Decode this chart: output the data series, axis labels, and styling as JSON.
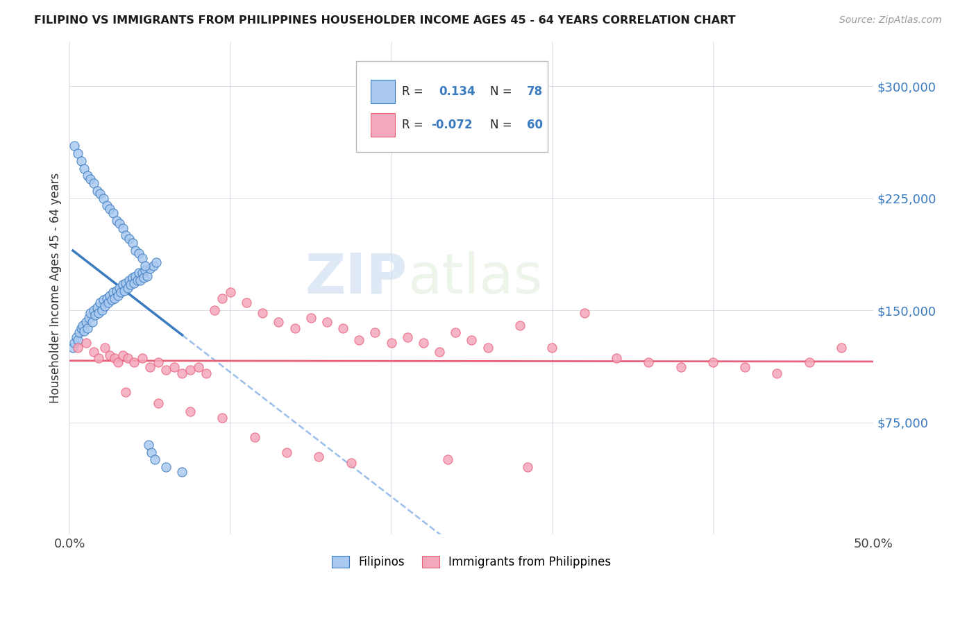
{
  "title": "FILIPINO VS IMMIGRANTS FROM PHILIPPINES HOUSEHOLDER INCOME AGES 45 - 64 YEARS CORRELATION CHART",
  "source": "Source: ZipAtlas.com",
  "ylabel": "Householder Income Ages 45 - 64 years",
  "xlim": [
    0.0,
    0.5
  ],
  "ylim": [
    0,
    330000
  ],
  "yticks": [
    75000,
    150000,
    225000,
    300000
  ],
  "ytick_labels": [
    "$75,000",
    "$150,000",
    "$225,000",
    "$300,000"
  ],
  "blue_R": 0.134,
  "blue_N": 78,
  "pink_R": -0.072,
  "pink_N": 60,
  "blue_color": "#aac9f0",
  "pink_color": "#f5a8bc",
  "blue_line_color": "#3a7abf",
  "pink_line_color": "#e8607a",
  "dashed_line_color": "#90b8e8",
  "watermark_zip": "ZIP",
  "watermark_atlas": "atlas",
  "legend_labels": [
    "Filipinos",
    "Immigrants from Philippines"
  ],
  "blue_x": [
    0.002,
    0.003,
    0.004,
    0.005,
    0.006,
    0.007,
    0.008,
    0.009,
    0.01,
    0.011,
    0.012,
    0.013,
    0.014,
    0.015,
    0.016,
    0.017,
    0.018,
    0.019,
    0.02,
    0.021,
    0.022,
    0.023,
    0.024,
    0.025,
    0.026,
    0.027,
    0.028,
    0.029,
    0.03,
    0.031,
    0.032,
    0.033,
    0.034,
    0.035,
    0.036,
    0.037,
    0.038,
    0.039,
    0.04,
    0.041,
    0.042,
    0.043,
    0.044,
    0.045,
    0.046,
    0.047,
    0.048,
    0.05,
    0.052,
    0.054,
    0.003,
    0.005,
    0.007,
    0.009,
    0.011,
    0.013,
    0.015,
    0.017,
    0.019,
    0.021,
    0.023,
    0.025,
    0.027,
    0.029,
    0.031,
    0.033,
    0.035,
    0.037,
    0.039,
    0.041,
    0.043,
    0.045,
    0.047,
    0.049,
    0.051,
    0.053,
    0.06,
    0.07
  ],
  "blue_y": [
    125000,
    128000,
    132000,
    130000,
    135000,
    138000,
    140000,
    136000,
    142000,
    138000,
    145000,
    148000,
    142000,
    150000,
    147000,
    152000,
    148000,
    155000,
    150000,
    157000,
    153000,
    158000,
    155000,
    160000,
    157000,
    162000,
    158000,
    163000,
    160000,
    165000,
    162000,
    167000,
    163000,
    168000,
    165000,
    170000,
    167000,
    172000,
    168000,
    173000,
    170000,
    175000,
    170000,
    175000,
    172000,
    177000,
    173000,
    178000,
    180000,
    182000,
    260000,
    255000,
    250000,
    245000,
    240000,
    238000,
    235000,
    230000,
    228000,
    225000,
    220000,
    218000,
    215000,
    210000,
    208000,
    205000,
    200000,
    198000,
    195000,
    190000,
    188000,
    185000,
    180000,
    60000,
    55000,
    50000,
    45000,
    42000
  ],
  "pink_x": [
    0.005,
    0.01,
    0.015,
    0.018,
    0.022,
    0.025,
    0.028,
    0.03,
    0.033,
    0.036,
    0.04,
    0.045,
    0.05,
    0.055,
    0.06,
    0.065,
    0.07,
    0.075,
    0.08,
    0.085,
    0.09,
    0.095,
    0.1,
    0.11,
    0.12,
    0.13,
    0.14,
    0.15,
    0.16,
    0.17,
    0.18,
    0.19,
    0.2,
    0.21,
    0.22,
    0.23,
    0.24,
    0.25,
    0.26,
    0.28,
    0.3,
    0.32,
    0.34,
    0.36,
    0.38,
    0.4,
    0.42,
    0.44,
    0.46,
    0.48,
    0.035,
    0.055,
    0.075,
    0.095,
    0.115,
    0.135,
    0.155,
    0.175,
    0.235,
    0.285
  ],
  "pink_y": [
    125000,
    128000,
    122000,
    118000,
    125000,
    120000,
    118000,
    115000,
    120000,
    118000,
    115000,
    118000,
    112000,
    115000,
    110000,
    112000,
    108000,
    110000,
    112000,
    108000,
    150000,
    158000,
    162000,
    155000,
    148000,
    142000,
    138000,
    145000,
    142000,
    138000,
    130000,
    135000,
    128000,
    132000,
    128000,
    122000,
    135000,
    130000,
    125000,
    140000,
    125000,
    148000,
    118000,
    115000,
    112000,
    115000,
    112000,
    108000,
    115000,
    125000,
    95000,
    88000,
    82000,
    78000,
    65000,
    55000,
    52000,
    48000,
    50000,
    45000
  ]
}
